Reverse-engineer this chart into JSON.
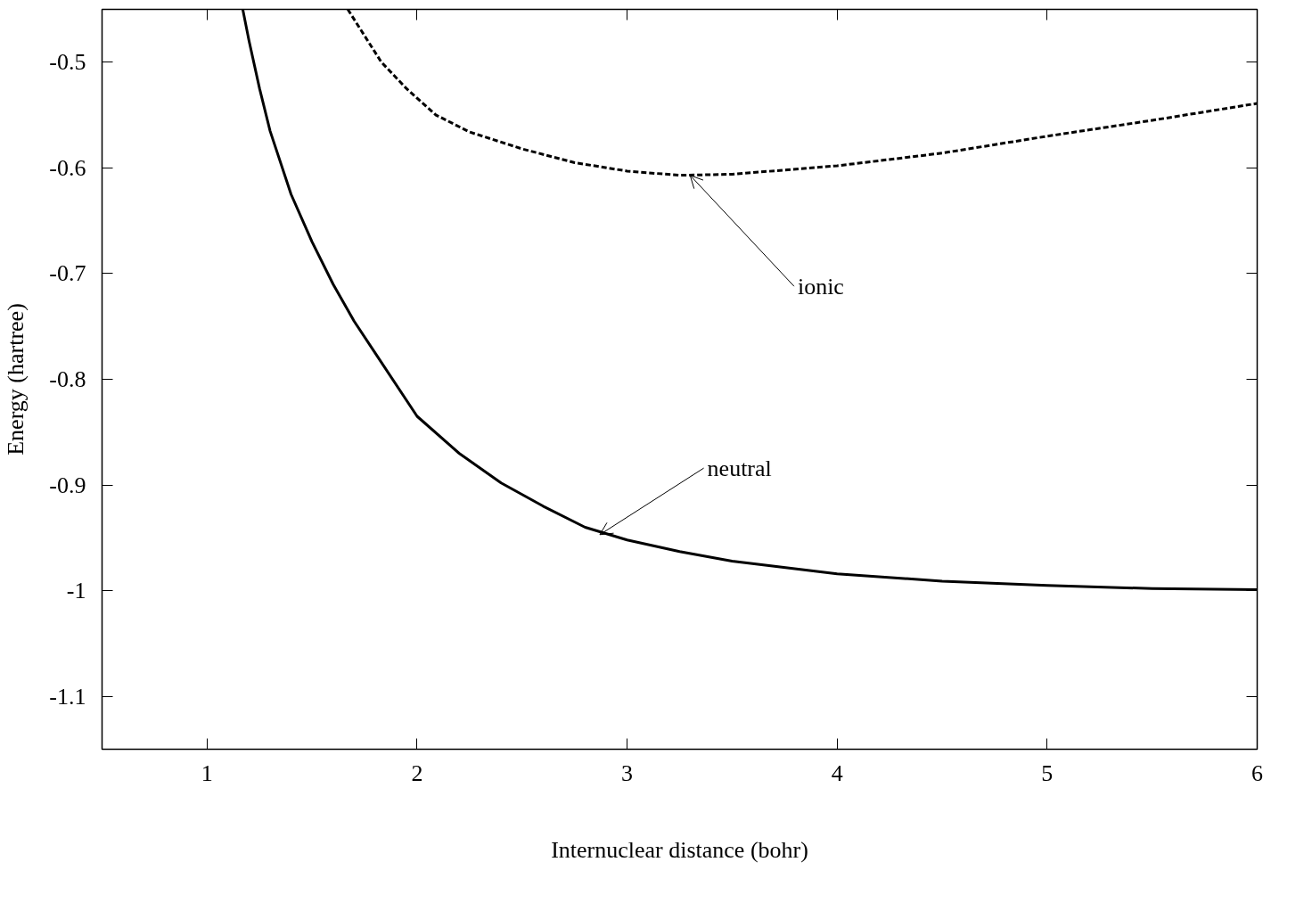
{
  "chart_data": {
    "type": "line",
    "xlabel": "Internuclear distance (bohr)",
    "ylabel": "Energy (hartree)",
    "xlim": [
      0.5,
      6
    ],
    "ylim": [
      -1.15,
      -0.45
    ],
    "xticks": [
      1,
      2,
      3,
      4,
      5,
      6
    ],
    "yticks": [
      -0.5,
      -0.6,
      -0.7,
      -0.8,
      -0.9,
      -1,
      -1.1
    ],
    "series": [
      {
        "color": "#000000",
        "line_style": "solid",
        "x": [
          1.17,
          1.2,
          1.25,
          1.3,
          1.4,
          1.5,
          1.6,
          1.7,
          1.8,
          2,
          2.2,
          2.4,
          2.6,
          2.8,
          3,
          3.25,
          3.5,
          4,
          4.5,
          5,
          5.5,
          6
        ],
        "values": [
          -0.45,
          -0.48,
          -0.525,
          -0.565,
          -0.625,
          -0.67,
          -0.71,
          -0.745,
          -0.775,
          -0.835,
          -0.87,
          -0.898,
          -0.92,
          -0.94,
          -0.952,
          -0.963,
          -0.972,
          -0.984,
          -0.991,
          -0.995,
          -0.998,
          -0.999
        ]
      },
      {
        "color": "#000000",
        "line_style": "dashed",
        "x": [
          1.67,
          1.75,
          1.83,
          1.95,
          2.09,
          2.25,
          2.5,
          2.75,
          3,
          3.25,
          3.5,
          4,
          4.5,
          5,
          5.5,
          6
        ],
        "values": [
          -0.45,
          -0.475,
          -0.5,
          -0.525,
          -0.55,
          -0.566,
          -0.582,
          -0.595,
          -0.603,
          -0.607,
          -0.606,
          -0.598,
          -0.586,
          -0.57,
          -0.555,
          -0.539
        ]
      }
    ],
    "annotations": [
      {
        "text": "ionic",
        "x": 3.3,
        "y": -0.607
      },
      {
        "text": "neutral",
        "x": 2.87,
        "y": -0.947
      }
    ]
  }
}
